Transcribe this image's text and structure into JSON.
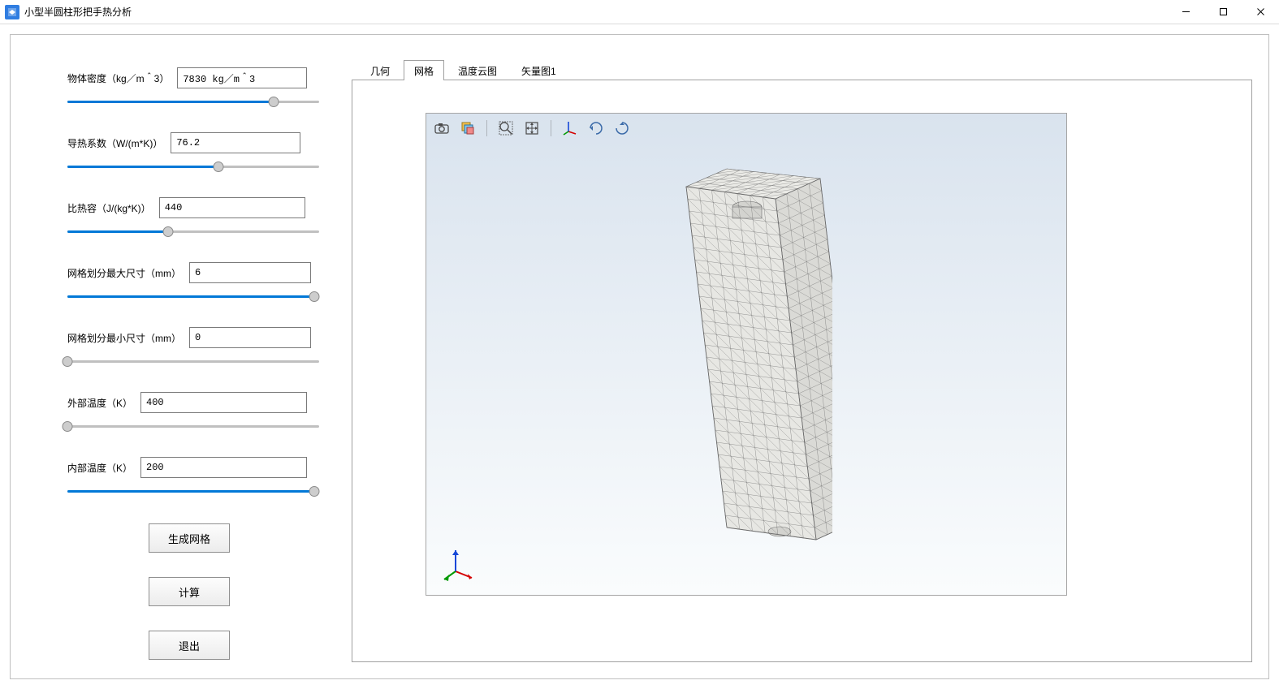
{
  "window": {
    "title": "小型半圆柱形把手热分析",
    "accent_color": "#2f7de1"
  },
  "win_controls": {
    "minimize": "—",
    "maximize": "□",
    "close": "×"
  },
  "parameters": [
    {
      "key": "density",
      "label": "物体密度（kg／m＾3）",
      "value": "7830 kg／m＾3",
      "slider_pct": 82,
      "input_width": 160
    },
    {
      "key": "conduct",
      "label": "导热系数（W/(m*K)）",
      "value": "76.2",
      "slider_pct": 60,
      "input_width": 160
    },
    {
      "key": "heatcap",
      "label": "比热容（J/(kg*K)）",
      "value": "440",
      "slider_pct": 40,
      "input_width": 180
    },
    {
      "key": "meshmax",
      "label": "网格划分最大尺寸（mm）",
      "value": "6",
      "slider_pct": 98,
      "input_width": 150
    },
    {
      "key": "meshmin",
      "label": "网格划分最小尺寸（mm）",
      "value": "0",
      "slider_pct": 0,
      "input_width": 150
    },
    {
      "key": "temp_out",
      "label": "外部温度（K）",
      "value": "400",
      "slider_pct": 0,
      "input_width": 205
    },
    {
      "key": "temp_in",
      "label": "内部温度（K）",
      "value": "200",
      "slider_pct": 98,
      "input_width": 205
    }
  ],
  "buttons": {
    "generate_mesh": "生成网格",
    "compute": "计算",
    "exit": "退出"
  },
  "tabs": {
    "items": [
      "几何",
      "网格",
      "温度云图",
      "矢量图1"
    ],
    "active_index": 1
  },
  "viewport": {
    "bg_top": "#d9e3ee",
    "bg_bottom": "#fafcfd",
    "mesh_line_color": "#6f6f6f",
    "mesh_face_color": "#dadad6",
    "axis_colors": {
      "x": "#d40000",
      "y": "#009a00",
      "z": "#1447d8"
    },
    "toolbar_icons": [
      "camera-icon",
      "layers-icon",
      "separator",
      "zoom-box-icon",
      "fit-screen-icon",
      "separator",
      "orient-axes-icon",
      "rotate-horizontal-icon",
      "rotate-vertical-icon"
    ]
  }
}
